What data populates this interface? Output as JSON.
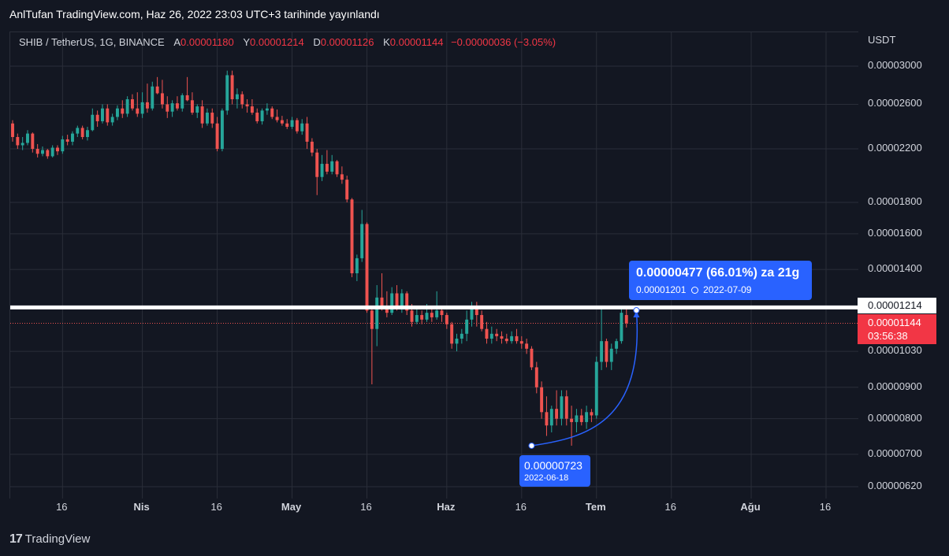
{
  "header": {
    "title": "AnlTufan TradingView.com, Haz 26, 2022 23:03 UTC+3 tarihinde yayınlandı"
  },
  "legend": {
    "symbol": "SHIB / TetherUS, 1G, BINANCE",
    "open_label": "A",
    "open": "0.00001180",
    "high_label": "Y",
    "high": "0.00001214",
    "low_label": "D",
    "low": "0.00001126",
    "close_label": "K",
    "close": "0.00001144",
    "change": "−0.00000036 (−3.05%)"
  },
  "currency": "USDT",
  "footer": {
    "brand": "TradingView",
    "logo_icon": "tradingview-logo-icon"
  },
  "colors": {
    "up": "#26a69a",
    "down": "#ef5350",
    "accent": "#2962ff",
    "bg": "#131722",
    "grid": "#2a2e39"
  },
  "measure": {
    "result": "0.00000477 (66.01%) za 21g",
    "end_price": "0.00001201",
    "end_date": "2022-07-09",
    "start_price": "0.00000723",
    "start_date": "2022-06-18",
    "clock_icon": "clock-icon"
  },
  "price_tags": {
    "horizontal_line_price": "0.00001214",
    "last_price": "0.00001144",
    "countdown": "03:56:38"
  },
  "chart_data": {
    "type": "candlestick",
    "title": "",
    "xlabel": "",
    "ylabel": "",
    "log_scale": true,
    "grid": true,
    "y_ticks": [
      "0.00003000",
      "0.00002600",
      "0.00002200",
      "0.00001800",
      "0.00001600",
      "0.00001400",
      "0.00001030",
      "0.00000900",
      "0.00000800",
      "0.00000700",
      "0.00000620"
    ],
    "x_ticks": [
      "16",
      "Nis",
      "16",
      "May",
      "16",
      "Haz",
      "16",
      "Tem",
      "16",
      "Ağu",
      "16"
    ],
    "x_tick_dates": [
      "2022-03-16",
      "2022-04-01",
      "2022-04-16",
      "2022-05-01",
      "2022-05-16",
      "2022-06-01",
      "2022-06-16",
      "2022-07-01",
      "2022-07-16",
      "2022-08-01",
      "2022-08-16"
    ],
    "horizontal_line": 1.214e-05,
    "last_price_line": 1.144e-05,
    "measure": {
      "start_date": "2022-06-18",
      "start_price": 7.23e-06,
      "end_date": "2022-07-09",
      "end_price": 1.201e-05
    },
    "x_start_date": "2022-03-06",
    "x_end_date": "2022-08-22",
    "candles": [
      [
        "2022-03-06",
        2.42e-05,
        2.45e-05,
        2.26e-05,
        2.3e-05
      ],
      [
        "2022-03-07",
        2.3e-05,
        2.33e-05,
        2.2e-05,
        2.23e-05
      ],
      [
        "2022-03-08",
        2.23e-05,
        2.3e-05,
        2.19e-05,
        2.25e-05
      ],
      [
        "2022-03-09",
        2.25e-05,
        2.36e-05,
        2.23e-05,
        2.33e-05
      ],
      [
        "2022-03-10",
        2.33e-05,
        2.34e-05,
        2.17e-05,
        2.2e-05
      ],
      [
        "2022-03-11",
        2.2e-05,
        2.24e-05,
        2.13e-05,
        2.16e-05
      ],
      [
        "2022-03-12",
        2.16e-05,
        2.22e-05,
        2.14e-05,
        2.19e-05
      ],
      [
        "2022-03-13",
        2.19e-05,
        2.2e-05,
        2.12e-05,
        2.14e-05
      ],
      [
        "2022-03-14",
        2.14e-05,
        2.23e-05,
        2.13e-05,
        2.21e-05
      ],
      [
        "2022-03-15",
        2.21e-05,
        2.23e-05,
        2.15e-05,
        2.18e-05
      ],
      [
        "2022-03-16",
        2.18e-05,
        2.31e-05,
        2.16e-05,
        2.28e-05
      ],
      [
        "2022-03-17",
        2.28e-05,
        2.32e-05,
        2.23e-05,
        2.26e-05
      ],
      [
        "2022-03-18",
        2.26e-05,
        2.35e-05,
        2.23e-05,
        2.33e-05
      ],
      [
        "2022-03-19",
        2.33e-05,
        2.4e-05,
        2.3e-05,
        2.38e-05
      ],
      [
        "2022-03-20",
        2.38e-05,
        2.4e-05,
        2.28e-05,
        2.3e-05
      ],
      [
        "2022-03-21",
        2.3e-05,
        2.39e-05,
        2.27e-05,
        2.36e-05
      ],
      [
        "2022-03-22",
        2.36e-05,
        2.56e-05,
        2.35e-05,
        2.5e-05
      ],
      [
        "2022-03-23",
        2.5e-05,
        2.54e-05,
        2.39e-05,
        2.44e-05
      ],
      [
        "2022-03-24",
        2.44e-05,
        2.6e-05,
        2.42e-05,
        2.56e-05
      ],
      [
        "2022-03-25",
        2.56e-05,
        2.6e-05,
        2.4e-05,
        2.43e-05
      ],
      [
        "2022-03-26",
        2.43e-05,
        2.51e-05,
        2.4e-05,
        2.48e-05
      ],
      [
        "2022-03-27",
        2.48e-05,
        2.59e-05,
        2.45e-05,
        2.56e-05
      ],
      [
        "2022-03-28",
        2.56e-05,
        2.64e-05,
        2.47e-05,
        2.51e-05
      ],
      [
        "2022-03-29",
        2.51e-05,
        2.68e-05,
        2.48e-05,
        2.65e-05
      ],
      [
        "2022-03-30",
        2.65e-05,
        2.7e-05,
        2.54e-05,
        2.56e-05
      ],
      [
        "2022-03-31",
        2.56e-05,
        2.72e-05,
        2.48e-05,
        2.51e-05
      ],
      [
        "2022-04-01",
        2.51e-05,
        2.72e-05,
        2.47e-05,
        2.62e-05
      ],
      [
        "2022-04-02",
        2.62e-05,
        2.81e-05,
        2.52e-05,
        2.56e-05
      ],
      [
        "2022-04-03",
        2.56e-05,
        2.83e-05,
        2.54e-05,
        2.78e-05
      ],
      [
        "2022-04-04",
        2.78e-05,
        2.88e-05,
        2.7e-05,
        2.71e-05
      ],
      [
        "2022-04-05",
        2.71e-05,
        2.85e-05,
        2.56e-05,
        2.6e-05
      ],
      [
        "2022-04-06",
        2.6e-05,
        2.68e-05,
        2.47e-05,
        2.53e-05
      ],
      [
        "2022-04-07",
        2.53e-05,
        2.64e-05,
        2.48e-05,
        2.61e-05
      ],
      [
        "2022-04-08",
        2.61e-05,
        2.68e-05,
        2.54e-05,
        2.56e-05
      ],
      [
        "2022-04-09",
        2.56e-05,
        2.71e-05,
        2.53e-05,
        2.69e-05
      ],
      [
        "2022-04-10",
        2.69e-05,
        2.88e-05,
        2.63e-05,
        2.64e-05
      ],
      [
        "2022-04-11",
        2.64e-05,
        2.72e-05,
        2.5e-05,
        2.52e-05
      ],
      [
        "2022-04-12",
        2.52e-05,
        2.6e-05,
        2.47e-05,
        2.58e-05
      ],
      [
        "2022-04-13",
        2.58e-05,
        2.64e-05,
        2.38e-05,
        2.42e-05
      ],
      [
        "2022-04-14",
        2.42e-05,
        2.56e-05,
        2.4e-05,
        2.52e-05
      ],
      [
        "2022-04-15",
        2.52e-05,
        2.56e-05,
        2.38e-05,
        2.42e-05
      ],
      [
        "2022-04-16",
        2.42e-05,
        2.48e-05,
        2.18e-05,
        2.2e-05
      ],
      [
        "2022-04-17",
        2.2e-05,
        2.56e-05,
        2.18e-05,
        2.54e-05
      ],
      [
        "2022-04-18",
        2.54e-05,
        2.95e-05,
        2.5e-05,
        2.9e-05
      ],
      [
        "2022-04-19",
        2.9e-05,
        2.95e-05,
        2.6e-05,
        2.65e-05
      ],
      [
        "2022-04-20",
        2.65e-05,
        2.76e-05,
        2.56e-05,
        2.7e-05
      ],
      [
        "2022-04-21",
        2.7e-05,
        2.73e-05,
        2.56e-05,
        2.6e-05
      ],
      [
        "2022-04-22",
        2.6e-05,
        2.65e-05,
        2.52e-05,
        2.58e-05
      ],
      [
        "2022-04-23",
        2.58e-05,
        2.65e-05,
        2.5e-05,
        2.52e-05
      ],
      [
        "2022-04-24",
        2.52e-05,
        2.56e-05,
        2.42e-05,
        2.44e-05
      ],
      [
        "2022-04-25",
        2.44e-05,
        2.56e-05,
        2.41e-05,
        2.54e-05
      ],
      [
        "2022-04-26",
        2.54e-05,
        2.61e-05,
        2.5e-05,
        2.56e-05
      ],
      [
        "2022-04-27",
        2.56e-05,
        2.58e-05,
        2.46e-05,
        2.48e-05
      ],
      [
        "2022-04-28",
        2.48e-05,
        2.55e-05,
        2.43e-05,
        2.45e-05
      ],
      [
        "2022-04-29",
        2.45e-05,
        2.49e-05,
        2.4e-05,
        2.42e-05
      ],
      [
        "2022-04-30",
        2.42e-05,
        2.46e-05,
        2.37e-05,
        2.39e-05
      ],
      [
        "2022-05-01",
        2.39e-05,
        2.48e-05,
        2.37e-05,
        2.45e-05
      ],
      [
        "2022-05-02",
        2.45e-05,
        2.47e-05,
        2.33e-05,
        2.35e-05
      ],
      [
        "2022-05-03",
        2.35e-05,
        2.46e-05,
        2.32e-05,
        2.42e-05
      ],
      [
        "2022-05-04",
        2.42e-05,
        2.48e-05,
        2.2e-05,
        2.26e-05
      ],
      [
        "2022-05-05",
        2.26e-05,
        2.29e-05,
        2.14e-05,
        2.17e-05
      ],
      [
        "2022-05-06",
        2.17e-05,
        2.2e-05,
        1.85e-05,
        1.98e-05
      ],
      [
        "2022-05-07",
        1.98e-05,
        2.15e-05,
        1.95e-05,
        2.08e-05
      ],
      [
        "2022-05-08",
        2.08e-05,
        2.19e-05,
        2e-05,
        2.02e-05
      ],
      [
        "2022-05-09",
        2.02e-05,
        2.15e-05,
        2e-05,
        2.1e-05
      ],
      [
        "2022-05-10",
        2.1e-05,
        2.11e-05,
        1.98e-05,
        2e-05
      ],
      [
        "2022-05-11",
        2e-05,
        2.06e-05,
        1.93e-05,
        1.96e-05
      ],
      [
        "2022-05-12",
        1.96e-05,
        1.99e-05,
        1.8e-05,
        1.82e-05
      ],
      [
        "2022-05-13",
        1.82e-05,
        1.83e-05,
        1.36e-05,
        1.38e-05
      ],
      [
        "2022-05-14",
        1.38e-05,
        1.48e-05,
        1.34e-05,
        1.46e-05
      ],
      [
        "2022-05-15",
        1.46e-05,
        1.75e-05,
        1.44e-05,
        1.66e-05
      ],
      [
        "2022-05-16",
        1.66e-05,
        1.67e-05,
        1.19e-05,
        1.2e-05
      ],
      [
        "2022-05-17",
        1.2e-05,
        1.21e-05,
        9.1e-06,
        1.12e-05
      ],
      [
        "2022-05-18",
        1.12e-05,
        1.32e-05,
        1.05e-05,
        1.26e-05
      ],
      [
        "2022-05-19",
        1.26e-05,
        1.38e-05,
        1.2e-05,
        1.22e-05
      ],
      [
        "2022-05-20",
        1.22e-05,
        1.29e-05,
        1.17e-05,
        1.19e-05
      ],
      [
        "2022-05-21",
        1.19e-05,
        1.31e-05,
        1.18e-05,
        1.28e-05
      ],
      [
        "2022-05-22",
        1.28e-05,
        1.32e-05,
        1.2e-05,
        1.22e-05
      ],
      [
        "2022-05-23",
        1.22e-05,
        1.3e-05,
        1.19e-05,
        1.28e-05
      ],
      [
        "2022-05-24",
        1.28e-05,
        1.29e-05,
        1.18e-05,
        1.2e-05
      ],
      [
        "2022-05-25",
        1.2e-05,
        1.23e-05,
        1.13e-05,
        1.15e-05
      ],
      [
        "2022-05-26",
        1.15e-05,
        1.21e-05,
        1.14e-05,
        1.18e-05
      ],
      [
        "2022-05-27",
        1.18e-05,
        1.2e-05,
        1.14e-05,
        1.16e-05
      ],
      [
        "2022-05-28",
        1.16e-05,
        1.23e-05,
        1.15e-05,
        1.19e-05
      ],
      [
        "2022-05-29",
        1.19e-05,
        1.22e-05,
        1.15e-05,
        1.17e-05
      ],
      [
        "2022-05-30",
        1.17e-05,
        1.29e-05,
        1.16e-05,
        1.2e-05
      ],
      [
        "2022-05-31",
        1.2e-05,
        1.22e-05,
        1.15e-05,
        1.18e-05
      ],
      [
        "2022-06-01",
        1.18e-05,
        1.19e-05,
        1.12e-05,
        1.14e-05
      ],
      [
        "2022-06-02",
        1.14e-05,
        1.15e-05,
        1.04e-05,
        1.06e-05
      ],
      [
        "2022-06-03",
        1.06e-05,
        1.1e-05,
        1.03e-05,
        1.08e-05
      ],
      [
        "2022-06-04",
        1.08e-05,
        1.12e-05,
        1.06e-05,
        1.1e-05
      ],
      [
        "2022-06-05",
        1.1e-05,
        1.2e-05,
        1.07e-05,
        1.16e-05
      ],
      [
        "2022-06-06",
        1.16e-05,
        1.24e-05,
        1.13e-05,
        1.22e-05
      ],
      [
        "2022-06-07",
        1.22e-05,
        1.24e-05,
        1.13e-05,
        1.18e-05
      ],
      [
        "2022-06-08",
        1.18e-05,
        1.2e-05,
        1.11e-05,
        1.12e-05
      ],
      [
        "2022-06-09",
        1.12e-05,
        1.15e-05,
        1.06e-05,
        1.08e-05
      ],
      [
        "2022-06-10",
        1.08e-05,
        1.13e-05,
        1.06e-05,
        1.1e-05
      ],
      [
        "2022-06-11",
        1.1e-05,
        1.12e-05,
        1.07e-05,
        1.09e-05
      ],
      [
        "2022-06-12",
        1.09e-05,
        1.11e-05,
        1.06e-05,
        1.08e-05
      ],
      [
        "2022-06-13",
        1.08e-05,
        1.1e-05,
        1.06e-05,
        1.07e-05
      ],
      [
        "2022-06-14",
        1.07e-05,
        1.11e-05,
        1.06e-05,
        1.09e-05
      ],
      [
        "2022-06-15",
        1.09e-05,
        1.12e-05,
        1.06e-05,
        1.07e-05
      ],
      [
        "2022-06-16",
        1.07e-05,
        1.09e-05,
        1.04e-05,
        1.06e-05
      ],
      [
        "2022-06-17",
        1.06e-05,
        1.08e-05,
        1.02e-05,
        1.04e-05
      ],
      [
        "2022-06-18",
        1.04e-05,
        1.05e-05,
        9.6e-06,
        9.7e-06
      ],
      [
        "2022-06-19",
        9.7e-06,
        9.9e-06,
        8.8e-06,
        9e-06
      ],
      [
        "2022-06-20",
        9e-06,
        9.2e-06,
        8e-06,
        8.2e-06
      ],
      [
        "2022-06-21",
        8.2e-06,
        8.7e-06,
        7.5e-06,
        7.8e-06
      ],
      [
        "2022-06-22",
        7.8e-06,
        8.4e-06,
        7.6e-06,
        8.3e-06
      ],
      [
        "2022-06-23",
        8.3e-06,
        8.9e-06,
        7.8e-06,
        8e-06
      ],
      [
        "2022-06-24",
        8e-06,
        8.9e-06,
        7.8e-06,
        8.7e-06
      ],
      [
        "2022-06-25",
        8.7e-06,
        8.9e-06,
        7.8e-06,
        8e-06
      ],
      [
        "2022-06-26",
        8e-06,
        8.4e-06,
        7.23e-06,
        7.9e-06
      ],
      [
        "2022-06-27",
        7.9e-06,
        8.3e-06,
        7.6e-06,
        8.1e-06
      ],
      [
        "2022-06-28",
        8.1e-06,
        8.3e-06,
        7.8e-06,
        7.9e-06
      ],
      [
        "2022-06-29",
        7.9e-06,
        8.4e-06,
        7.7e-06,
        8.2e-06
      ],
      [
        "2022-06-30",
        8.2e-06,
        8.3e-06,
        7.9e-06,
        8.1e-06
      ],
      [
        "2022-07-01",
        8.1e-06,
        1.01e-05,
        8e-06,
        9.9e-06
      ],
      [
        "2022-07-02",
        9.9e-06,
        1.21e-05,
        9.6e-06,
        1.07e-05
      ],
      [
        "2022-07-03",
        1.07e-05,
        1.08e-05,
        9.7e-06,
        9.9e-06
      ],
      [
        "2022-07-04",
        9.9e-06,
        1.06e-05,
        9.6e-06,
        1.04e-05
      ],
      [
        "2022-07-05",
        1.04e-05,
        1.08e-05,
        1.02e-05,
        1.07e-05
      ],
      [
        "2022-07-06",
        1.07e-05,
        1.21e-05,
        1.06e-05,
        1.19e-05
      ],
      [
        "2022-07-07",
        1.18e-05,
        1.214e-05,
        1.126e-05,
        1.144e-05
      ]
    ]
  }
}
